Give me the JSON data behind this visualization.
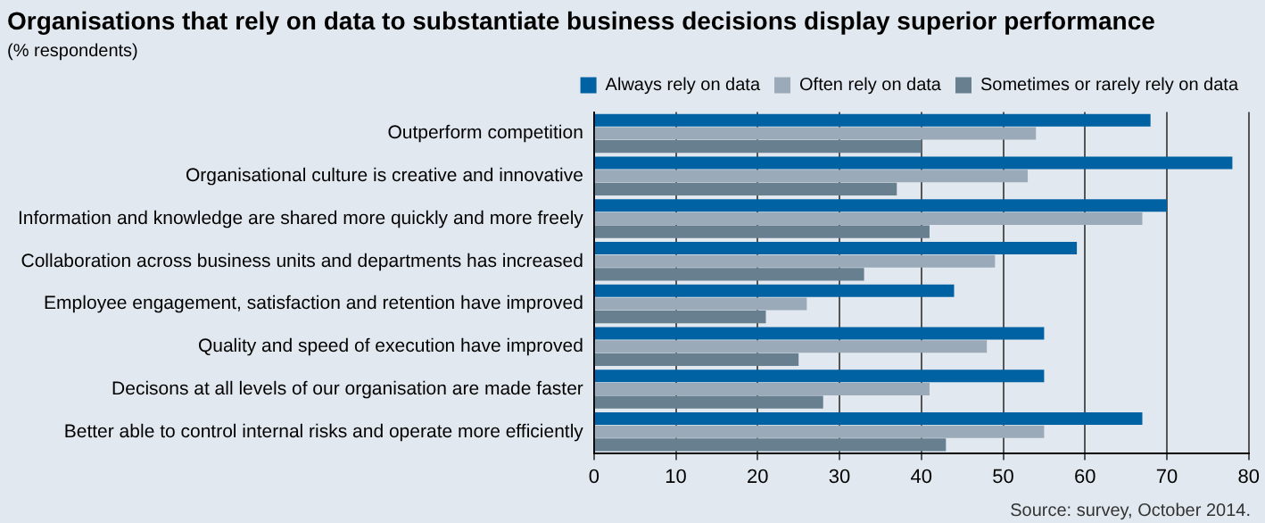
{
  "chart_data": {
    "type": "bar",
    "orientation": "horizontal",
    "title": "Organisations that rely on data to substantiate business decisions display superior performance",
    "subtitle": "(% respondents)",
    "categories": [
      "Outperform competition",
      "Organisational culture is creative and innovative",
      "Information and knowledge are shared more quickly and more freely",
      "Collaboration across business units and departments has increased",
      "Employee engagement, satisfaction and retention have improved",
      "Quality and speed of execution have improved",
      "Decisons at all levels of our organisation are made faster",
      "Better able to control internal risks and operate more efficiently"
    ],
    "series": [
      {
        "name": "Always rely on data",
        "color": "#0062a3",
        "values": [
          68,
          78,
          70,
          59,
          44,
          55,
          55,
          67
        ]
      },
      {
        "name": "Often rely on data",
        "color": "#9aaab8",
        "values": [
          54,
          53,
          67,
          49,
          26,
          48,
          41,
          55
        ]
      },
      {
        "name": "Sometimes or rarely rely on data",
        "color": "#677f8f",
        "values": [
          40,
          37,
          41,
          33,
          21,
          25,
          28,
          43
        ]
      }
    ],
    "xlim": [
      0,
      80
    ],
    "xticks": [
      0,
      10,
      20,
      30,
      40,
      50,
      60,
      70,
      80
    ],
    "grid": "x",
    "legend": "top right",
    "annotations": [
      "Source: survey, October 2014."
    ]
  }
}
